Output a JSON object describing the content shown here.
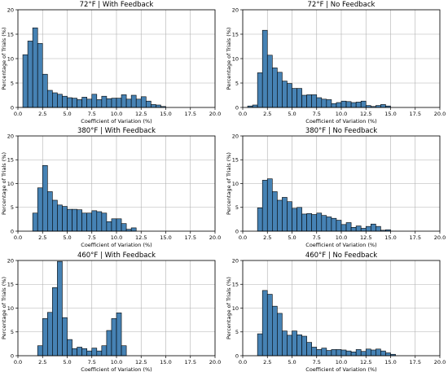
{
  "chart_data": [
    {
      "type": "bar",
      "title": "72°F | With Feedback",
      "xlabel": "Coefficient of Variation (%)",
      "ylabel": "Percentage of Trials (%)",
      "xlim": [
        0,
        20
      ],
      "ylim": [
        0,
        20
      ],
      "xticks": [
        "0.0",
        "2.5",
        "5.0",
        "7.5",
        "10.0",
        "12.5",
        "15.0",
        "17.5",
        "20.0"
      ],
      "yticks": [
        "0",
        "5",
        "10",
        "15",
        "20"
      ],
      "grid": true,
      "bar_color": "#4682b4",
      "bin_start": 0.5,
      "bin_width": 0.5,
      "values": [
        10.8,
        13.6,
        16.3,
        13.1,
        6.8,
        3.5,
        3.0,
        2.7,
        2.3,
        2.0,
        1.9,
        1.6,
        2.1,
        1.7,
        2.7,
        1.6,
        2.3,
        1.8,
        1.9,
        1.9,
        2.6,
        1.7,
        2.5,
        1.7,
        2.2,
        1.3,
        0.6,
        0.5,
        0.2
      ]
    },
    {
      "type": "bar",
      "title": "72°F | No Feedback",
      "xlabel": "Coefficient of Variation (%)",
      "ylabel": "Percentage of Trials (%)",
      "xlim": [
        0,
        20
      ],
      "ylim": [
        0,
        20
      ],
      "xticks": [
        "0.0",
        "2.5",
        "5.0",
        "7.5",
        "10.0",
        "12.5",
        "15.0",
        "17.5",
        "20.0"
      ],
      "yticks": [
        "0",
        "5",
        "10",
        "15",
        "20"
      ],
      "grid": true,
      "bar_color": "#4682b4",
      "bin_start": 0.5,
      "bin_width": 0.5,
      "values": [
        0.3,
        0.5,
        7.1,
        15.8,
        10.7,
        8.1,
        7.2,
        5.4,
        4.9,
        3.9,
        3.9,
        2.5,
        2.6,
        2.6,
        2.0,
        1.7,
        1.6,
        0.8,
        1.0,
        1.3,
        1.2,
        1.0,
        1.1,
        1.3,
        0.4,
        0.2,
        0.4,
        0.6,
        0.3
      ]
    },
    {
      "type": "bar",
      "title": "380°F | With Feedback",
      "xlabel": "Coefficient of Variation (%)",
      "ylabel": "Percentage of Trials (%)",
      "xlim": [
        0,
        20
      ],
      "ylim": [
        0,
        20
      ],
      "xticks": [
        "0.0",
        "2.5",
        "5.0",
        "7.5",
        "10.0",
        "12.5",
        "15.0",
        "17.5",
        "20.0"
      ],
      "yticks": [
        "0",
        "5",
        "10",
        "15",
        "20"
      ],
      "grid": true,
      "bar_color": "#4682b4",
      "bin_start": 1.5,
      "bin_width": 0.5,
      "values": [
        3.8,
        9.1,
        13.8,
        8.3,
        6.5,
        5.5,
        5.2,
        4.6,
        4.6,
        4.5,
        3.8,
        3.8,
        4.3,
        4.1,
        3.8,
        2.0,
        2.6,
        2.6,
        1.6,
        0.4,
        0.7
      ]
    },
    {
      "type": "bar",
      "title": "380°F | No Feedback",
      "xlabel": "Coefficient of Variation (%)",
      "ylabel": "Percentage of Trials (%)",
      "xlim": [
        0,
        20
      ],
      "ylim": [
        0,
        20
      ],
      "xticks": [
        "0.0",
        "2.5",
        "5.0",
        "7.5",
        "10.0",
        "12.5",
        "15.0",
        "17.5",
        "20.0"
      ],
      "yticks": [
        "0",
        "5",
        "10",
        "15",
        "20"
      ],
      "grid": true,
      "bar_color": "#4682b4",
      "bin_start": 1.5,
      "bin_width": 0.5,
      "values": [
        4.9,
        10.7,
        11.0,
        8.3,
        6.5,
        7.1,
        6.2,
        4.8,
        5.0,
        3.6,
        3.7,
        3.5,
        3.8,
        3.3,
        3.0,
        2.7,
        2.3,
        1.4,
        1.8,
        0.8,
        1.1,
        0.6,
        1.0,
        1.5,
        1.0,
        0.2,
        0.3
      ]
    },
    {
      "type": "bar",
      "title": "460°F | With Feedback",
      "xlabel": "Coefficient of Variation (%)",
      "ylabel": "Percentage of Trials (%)",
      "xlim": [
        0,
        20
      ],
      "ylim": [
        0,
        20
      ],
      "xticks": [
        "0.0",
        "2.5",
        "5.0",
        "7.5",
        "10.0",
        "12.5",
        "15.0",
        "17.5",
        "20.0"
      ],
      "yticks": [
        "0",
        "5",
        "10",
        "15",
        "20"
      ],
      "grid": true,
      "bar_color": "#4682b4",
      "bin_start": 2.0,
      "bin_width": 0.5,
      "values": [
        2.1,
        7.8,
        9.1,
        14.3,
        19.8,
        8.0,
        3.4,
        1.5,
        1.8,
        1.5,
        1.0,
        1.6,
        1.0,
        2.1,
        5.3,
        7.8,
        9.0,
        2.1
      ]
    },
    {
      "type": "bar",
      "title": "460°F | No Feedback",
      "xlabel": "Coefficient of Variation (%)",
      "ylabel": "Percentage of Trials (%)",
      "xlim": [
        0,
        20
      ],
      "ylim": [
        0,
        20
      ],
      "xticks": [
        "0.0",
        "2.5",
        "5.0",
        "7.5",
        "10.0",
        "12.5",
        "15.0",
        "17.5",
        "20.0"
      ],
      "yticks": [
        "0",
        "5",
        "10",
        "15",
        "20"
      ],
      "grid": true,
      "bar_color": "#4682b4",
      "bin_start": 1.5,
      "bin_width": 0.5,
      "values": [
        4.6,
        13.7,
        12.9,
        10.4,
        8.9,
        5.2,
        4.3,
        5.2,
        4.4,
        4.1,
        2.8,
        1.8,
        1.3,
        1.6,
        1.1,
        1.3,
        1.3,
        1.2,
        1.0,
        0.8,
        1.3,
        0.9,
        1.4,
        1.2,
        1.4,
        1.0,
        0.6,
        0.3
      ]
    }
  ]
}
